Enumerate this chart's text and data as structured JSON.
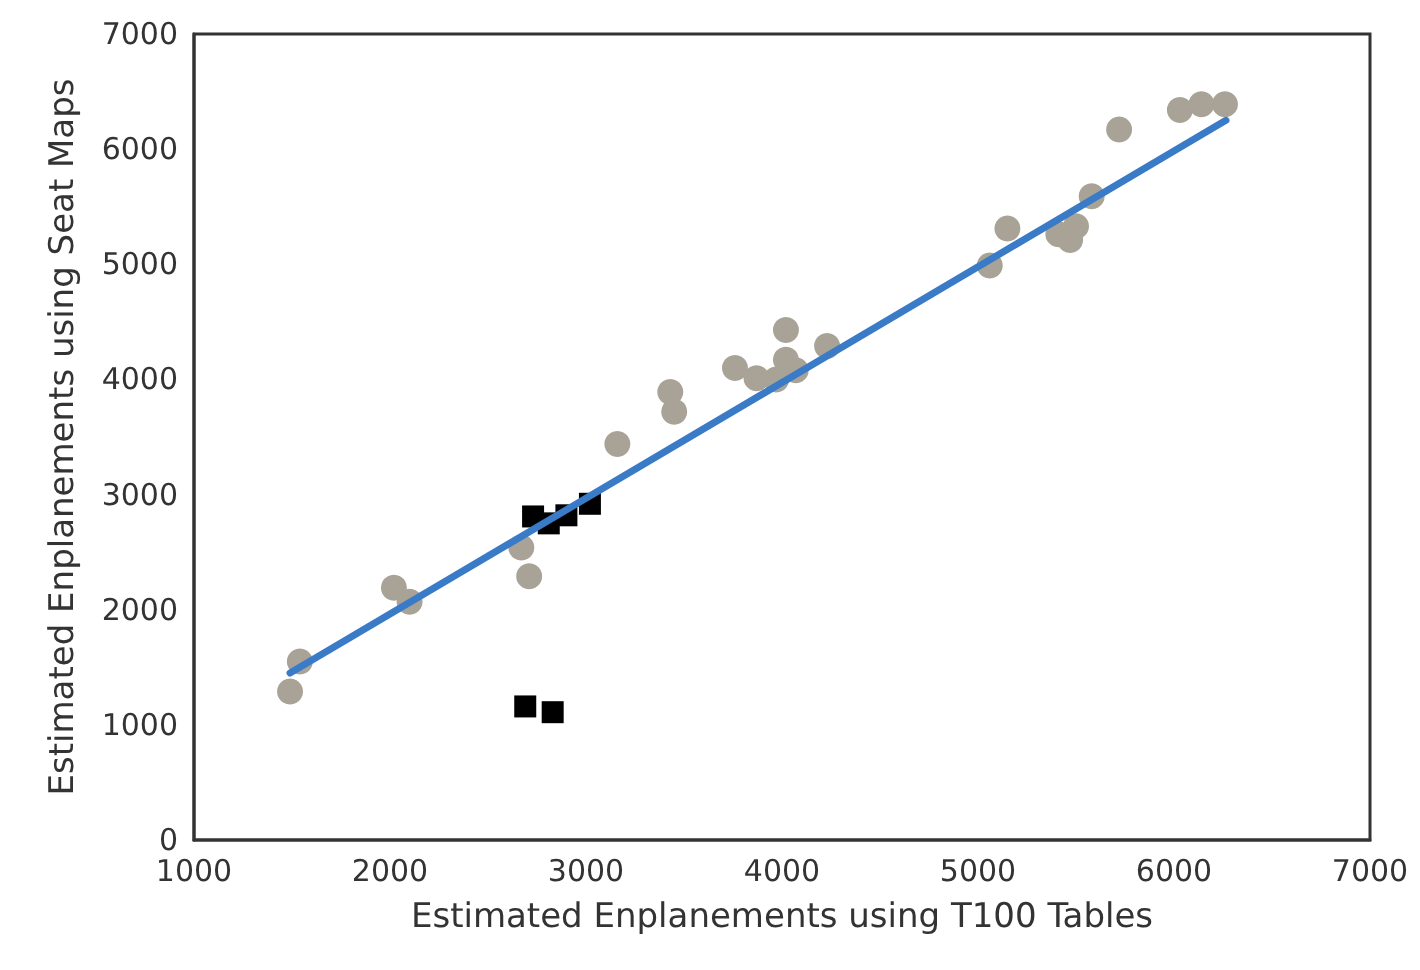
{
  "chart_data": {
    "type": "scatter",
    "xlabel": "Estimated Enplanements using T100 Tables",
    "ylabel": "Estimated Enplanements using Seat Maps",
    "xlim": [
      1000,
      7000
    ],
    "xticks": [
      1000,
      2000,
      3000,
      4000,
      5000,
      6000,
      7000
    ],
    "ylim": [
      0,
      7000
    ],
    "yticks": [
      0,
      1000,
      2000,
      3000,
      4000,
      5000,
      6000,
      7000
    ],
    "grid": false,
    "series": [
      {
        "marker": "circle",
        "color": "#a8a396",
        "x": [
          1490,
          1540,
          2020,
          2100,
          2670,
          2710,
          3160,
          3430,
          3450,
          3760,
          3870,
          3970,
          4020,
          4020,
          4070,
          4230,
          5060,
          5150,
          5410,
          5470,
          5500,
          5580,
          5720,
          6030,
          6140,
          6260
        ],
        "values": [
          1290,
          1550,
          2190,
          2070,
          2540,
          2290,
          3440,
          3890,
          3720,
          4100,
          4010,
          4000,
          4170,
          4430,
          4080,
          4290,
          4990,
          5310,
          5260,
          5210,
          5330,
          5590,
          6170,
          6340,
          6390,
          6390
        ]
      },
      {
        "marker": "square",
        "color": "#000000",
        "x": [
          2730,
          2810,
          2900,
          3020,
          2690,
          2830
        ],
        "values": [
          2810,
          2750,
          2820,
          2920,
          1160,
          1110
        ]
      },
      {
        "type": "line",
        "marker": "none",
        "line_style": "solid",
        "color": "#3a7bc8",
        "x": [
          1490,
          6265
        ],
        "values": [
          1450,
          6250
        ]
      }
    ]
  }
}
